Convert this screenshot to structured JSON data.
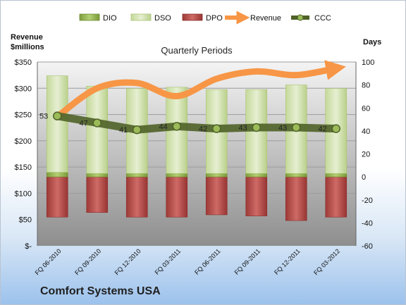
{
  "company": "Comfort Systems USA",
  "chart_data": {
    "type": "bar",
    "title": "Quarterly Periods",
    "categories": [
      "FQ 06-2010",
      "FQ 09-2010",
      "FQ 12-2010",
      "FQ 03-2011",
      "FQ 06-2011",
      "FQ 09-2011",
      "FQ 12-2011",
      "FQ 03-2012"
    ],
    "left_axis": {
      "label": "Revenue\n$millions",
      "ylim": [
        0,
        350
      ],
      "ticks": [
        "$-",
        "$50",
        "$100",
        "$150",
        "$200",
        "$250",
        "$300",
        "$350"
      ]
    },
    "right_axis": {
      "label": "Days",
      "ylim": [
        -60,
        100
      ],
      "ticks": [
        "-60",
        "-40",
        "-20",
        "0",
        "20",
        "40",
        "60",
        "80",
        "100"
      ]
    },
    "series": [
      {
        "name": "DIO",
        "type": "stacked-bar",
        "axis": "right",
        "color": "#9bbb59",
        "values": [
          4,
          3,
          3,
          3,
          3,
          3,
          3,
          3
        ]
      },
      {
        "name": "DSO",
        "type": "stacked-bar",
        "axis": "right",
        "color": "#d7e4bd",
        "values": [
          84,
          76,
          74,
          75,
          73,
          73,
          77,
          74
        ]
      },
      {
        "name": "DPO",
        "type": "stacked-bar",
        "axis": "right",
        "color": "#c0504d",
        "values": [
          -35,
          -31,
          -35,
          -35,
          -33,
          -34,
          -38,
          -35
        ]
      },
      {
        "name": "Revenue",
        "type": "line",
        "axis": "left",
        "color": "#f79646",
        "values": [
          246,
          300,
          310,
          285,
          318,
          332,
          325,
          338
        ]
      },
      {
        "name": "CCC",
        "type": "line",
        "axis": "right",
        "color": "#4f6228",
        "values": [
          53,
          47,
          41,
          44,
          42,
          43,
          43,
          42
        ],
        "labels": [
          "53",
          "47",
          "41",
          "44",
          "42",
          "43",
          "43",
          "42"
        ]
      }
    ],
    "legend": "top",
    "grid": true
  }
}
